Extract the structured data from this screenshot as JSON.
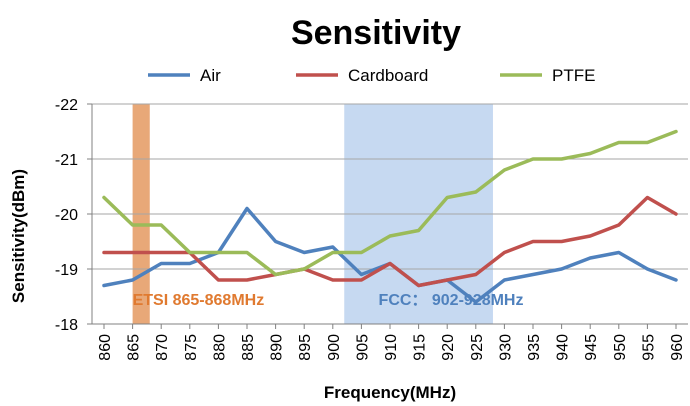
{
  "chart_data": {
    "type": "line",
    "title": "Sensitivity",
    "xlabel": "Frequency(MHz)",
    "ylabel": "Sensitivity(dBm)",
    "x": [
      860,
      865,
      870,
      875,
      880,
      885,
      890,
      895,
      900,
      905,
      910,
      915,
      920,
      925,
      930,
      935,
      940,
      945,
      950,
      955,
      960
    ],
    "x_tick_labels": [
      "860",
      "865",
      "870",
      "875",
      "880",
      "885",
      "890",
      "895",
      "900",
      "905",
      "910",
      "915",
      "920",
      "925",
      "930",
      "935",
      "940",
      "945",
      "950",
      "955",
      "960"
    ],
    "y_tick_labels": [
      "-22",
      "-21",
      "-20",
      "-19",
      "-18"
    ],
    "y_ticks": [
      -22,
      -21,
      -20,
      -19,
      -18
    ],
    "ylim": [
      -22,
      -18
    ],
    "y_inverted": true,
    "grid": "horizontal",
    "legend_position": "top",
    "series": [
      {
        "name": "Air",
        "color": "#4f81bd",
        "values": [
          -18.7,
          -18.8,
          -19.1,
          -19.1,
          -19.3,
          -20.1,
          -19.5,
          -19.3,
          -19.4,
          -18.9,
          -19.1,
          -18.7,
          -18.8,
          -18.4,
          -18.8,
          -18.9,
          -19.0,
          -19.2,
          -19.3,
          -19.0,
          -18.8
        ]
      },
      {
        "name": "Cardboard",
        "color": "#c0504d",
        "values": [
          -19.3,
          -19.3,
          -19.3,
          -19.3,
          -18.8,
          -18.8,
          -18.9,
          -19.0,
          -18.8,
          -18.8,
          -19.1,
          -18.7,
          -18.8,
          -18.9,
          -19.3,
          -19.5,
          -19.5,
          -19.6,
          -19.8,
          -20.3,
          -20.0
        ]
      },
      {
        "name": "PTFE",
        "color": "#9bbb59",
        "values": [
          -20.3,
          -19.8,
          -19.8,
          -19.3,
          -19.3,
          -19.3,
          -18.9,
          -19.0,
          -19.3,
          -19.3,
          -19.6,
          -19.7,
          -20.3,
          -20.4,
          -20.8,
          -21.0,
          -21.0,
          -21.1,
          -21.3,
          -21.3,
          -21.5
        ]
      }
    ],
    "bands": [
      {
        "label": "ETSI 865-868MHz",
        "from": 865,
        "to": 868,
        "color": "#e8a878",
        "text_color": "#e07a30",
        "anchor_x": 865
      },
      {
        "label": "FCC： 902-928MHz",
        "from": 902,
        "to": 928,
        "color": "#c6d9f1",
        "text_color": "#4f81bd",
        "anchor_x": 908
      }
    ]
  }
}
